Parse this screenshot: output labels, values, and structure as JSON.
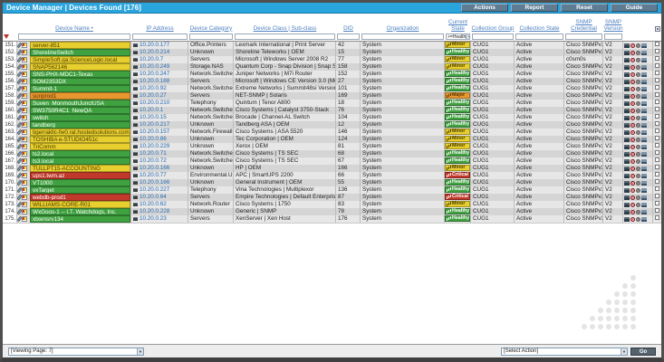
{
  "title": "Device Manager | Devices Found [176]",
  "toolbar": {
    "buttons": [
      "Actions",
      "Report",
      "Reset",
      "Guide"
    ]
  },
  "columns": [
    "Device Name •",
    "IP Address",
    "Device Category",
    "Device Class | Sub-class",
    "DID",
    "Organization",
    "Current State",
    "Collection Group",
    "Collection State",
    "SNMP Credential",
    "SNMP Version"
  ],
  "filters": {
    "state_filter": ">=Health"
  },
  "state_colors": {
    "healthy": {
      "bg": "#3fa13f",
      "fg": "#ffffff",
      "label": "Healthy"
    },
    "minor": {
      "bg": "#e7cf2f",
      "fg": "#4a3c00",
      "label": "Minor"
    },
    "major": {
      "bg": "#e6972f",
      "fg": "#5b3400",
      "label": "Major"
    },
    "critical": {
      "bg": "#c0392b",
      "fg": "#ffffff",
      "label": "Critical"
    }
  },
  "rows": [
    {
      "num": "151.",
      "name": "server-851",
      "state": "minor",
      "ip": "10.20.0.177",
      "category": "Office.Printers",
      "device_class": "Lexmark International | Print Server",
      "did": "42",
      "org": "System",
      "state_label": "Minor",
      "group": "CUG1",
      "coll_state": "Active",
      "credential": "Cisco SNMPv2 - Exa",
      "version": "V2"
    },
    {
      "num": "152.",
      "name": "ShorelineSwitch",
      "state": "healthy",
      "ip": "10.20.0.214",
      "category": "Unknown",
      "device_class": "Shoreline Teleworks | OEM",
      "did": "15",
      "org": "System",
      "state_label": "Healthy",
      "group": "CUG1",
      "coll_state": "Active",
      "credential": "Cisco SNMPv2 - Exa",
      "version": "V2"
    },
    {
      "num": "153.",
      "name": "SimpleSoft.qa.ScienceLogic.local",
      "state": "minor",
      "ip": "10.20.0.7",
      "category": "Servers",
      "device_class": "Microsoft | Windows Server 2008 R2",
      "did": "77",
      "org": "System",
      "state_label": "Minor",
      "group": "CUG1",
      "coll_state": "Active",
      "credential": "c0sm0s",
      "version": "V2"
    },
    {
      "num": "154.",
      "name": "SNAP562146",
      "state": "minor",
      "ip": "10.20.0.249",
      "category": "Storage.NAS",
      "device_class": "Quantum Corp - Snap Division | Snap Server",
      "did": "158",
      "org": "System",
      "state_label": "Minor",
      "group": "CUG1",
      "coll_state": "Active",
      "credential": "Cisco SNMPv2 - Exa",
      "version": "V2"
    },
    {
      "num": "155.",
      "name": "SNS-PHX-MDC1-Texas",
      "state": "healthy",
      "ip": "10.20.0.247",
      "category": "Network.Switches",
      "device_class": "Juniper Networks | M7i Router",
      "did": "152",
      "org": "System",
      "state_label": "Healthy",
      "group": "CUG1",
      "coll_state": "Active",
      "credential": "Cisco SNMPv2 - Exa",
      "version": "V2"
    },
    {
      "num": "156.",
      "name": "SOM2353DX",
      "state": "healthy",
      "ip": "10.20.0.188",
      "category": "Servers",
      "device_class": "Microsoft | Windows CE Version 3.0 (Multiple",
      "did": "27",
      "org": "System",
      "state_label": "Healthy",
      "group": "CUG1",
      "coll_state": "Active",
      "credential": "Cisco SNMPv2 - Exa",
      "version": "V2"
    },
    {
      "num": "157.",
      "name": "Summit-1",
      "state": "healthy",
      "ip": "10.20.0.92",
      "category": "Network.Switches",
      "device_class": "Extreme Networks | Summit48si Version 7.1.1",
      "did": "101",
      "org": "System",
      "state_label": "Healthy",
      "group": "CUG1",
      "coll_state": "Active",
      "credential": "Cisco SNMPv2 - Exa",
      "version": "V2"
    },
    {
      "num": "158.",
      "name": "sunprod1",
      "state": "major",
      "ip": "10.20.0.27",
      "category": "Servers",
      "device_class": "NET-SNMP | Solaris",
      "did": "169",
      "org": "System",
      "state_label": "Major",
      "group": "CUG1",
      "coll_state": "Active",
      "credential": "Cisco SNMPv2 - Exa",
      "version": "V2"
    },
    {
      "num": "159.",
      "name": "Suven_MonmouthJunctUSA",
      "state": "healthy",
      "ip": "10.20.0.210",
      "category": "Telephony",
      "device_class": "Quintum | Tenor A800",
      "did": "18",
      "org": "System",
      "state_label": "Healthy",
      "group": "CUG1",
      "coll_state": "Active",
      "credential": "Cisco SNMPv2 - Exa",
      "version": "V2"
    },
    {
      "num": "160.",
      "name": "SW3750R4C1_NewQA",
      "state": "healthy",
      "ip": "10.20.0.1",
      "category": "Network.Switches",
      "device_class": "Cisco Systems | Catalyst 3750-Stack",
      "did": "76",
      "org": "System",
      "state_label": "Healthy",
      "group": "CUG1",
      "coll_state": "Active",
      "credential": "Cisco SNMPv2 - Exa",
      "version": "V2"
    },
    {
      "num": "161.",
      "name": "switch",
      "state": "healthy",
      "ip": "10.20.0.15",
      "category": "Network.Switches",
      "device_class": "Brocade | Channel-AL Switch",
      "did": "104",
      "org": "System",
      "state_label": "Healthy",
      "group": "CUG1",
      "coll_state": "Active",
      "credential": "Cisco SNMPv2 - Exa",
      "version": "V2"
    },
    {
      "num": "162.",
      "name": "tandberg",
      "state": "healthy",
      "ip": "10.20.0.217",
      "category": "Unknown",
      "device_class": "Tandberg ASA | OEM",
      "did": "12",
      "org": "System",
      "state_label": "Healthy",
      "group": "CUG1",
      "coll_state": "Active",
      "credential": "Cisco SNMPv2 - Exa",
      "version": "V2"
    },
    {
      "num": "163.",
      "name": "tigerrakllc-fw0.ral.hostedsolutions.com",
      "state": "minor",
      "ip": "10.20.0.157",
      "category": "Network.Firewall",
      "device_class": "Cisco Systems | ASA 5520",
      "did": "146",
      "org": "System",
      "state_label": "Minor",
      "group": "CUG1",
      "coll_state": "Active",
      "credential": "Cisco SNMPv2 - Exa",
      "version": "V2"
    },
    {
      "num": "164.",
      "name": "TOSHIBA e-STUDIO451c",
      "state": "minor",
      "ip": "10.20.0.86",
      "category": "Unknown",
      "device_class": "Tec Corporation | OEM",
      "did": "124",
      "org": "System",
      "state_label": "Minor",
      "group": "CUG1",
      "coll_state": "Active",
      "credential": "Cisco SNMPv2 - Exa",
      "version": "V2"
    },
    {
      "num": "165.",
      "name": "TriComm",
      "state": "minor",
      "ip": "10.20.0.229",
      "category": "Unknown",
      "device_class": "Xerox | OEM",
      "did": "81",
      "org": "System",
      "state_label": "Minor",
      "group": "CUG1",
      "coll_state": "Active",
      "credential": "Cisco SNMPv2 - Exa",
      "version": "V2"
    },
    {
      "num": "166.",
      "name": "ts2.local",
      "state": "healthy",
      "ip": "10.20.0.71",
      "category": "Network.Switches",
      "device_class": "Cisco Systems | TS SEC",
      "did": "68",
      "org": "System",
      "state_label": "Healthy",
      "group": "CUG1",
      "coll_state": "Active",
      "credential": "Cisco SNMPv2 - Exa",
      "version": "V2"
    },
    {
      "num": "167.",
      "name": "ts3.local",
      "state": "healthy",
      "ip": "10.20.0.72",
      "category": "Network.Switches",
      "device_class": "Cisco Systems | TS SEC",
      "did": "67",
      "org": "System",
      "state_label": "Healthy",
      "group": "CUG1",
      "coll_state": "Active",
      "credential": "Cisco SNMPv2 - Exa",
      "version": "V2"
    },
    {
      "num": "168.",
      "name": "TULLPT15-ACCOUNTING",
      "state": "minor",
      "ip": "10.20.0.166",
      "category": "Unknown",
      "device_class": "HP | OEM",
      "did": "166",
      "org": "System",
      "state_label": "Minor",
      "group": "CUG1",
      "coll_state": "Active",
      "credential": "Cisco SNMPv2 - Exa",
      "version": "V2"
    },
    {
      "num": "169.",
      "name": "ups1.twm.az",
      "state": "critical",
      "ip": "10.20.0.77",
      "category": "Environmental.UPS",
      "device_class": "APC | SmartUPS 2200",
      "did": "66",
      "org": "System",
      "state_label": "Critical",
      "group": "CUG1",
      "coll_state": "Active",
      "credential": "Cisco SNMPv2 - Exa",
      "version": "V2"
    },
    {
      "num": "170.",
      "name": "VT1000",
      "state": "healthy",
      "ip": "10.20.0.166",
      "category": "Unknown",
      "device_class": "General Instrument | OEM",
      "did": "55",
      "org": "System",
      "state_label": "Healthy",
      "group": "CUG1",
      "coll_state": "Active",
      "credential": "Cisco SNMPv2 - Exa",
      "version": "V2"
    },
    {
      "num": "171.",
      "name": "vxTarget",
      "state": "healthy",
      "ip": "10.20.0.227",
      "category": "Telephony",
      "device_class": "Vina Technologies | Multiplexor",
      "did": "136",
      "org": "System",
      "state_label": "Healthy",
      "group": "CUG1",
      "coll_state": "Active",
      "credential": "Cisco SNMPv2 - Exa",
      "version": "V2"
    },
    {
      "num": "172.",
      "name": "webdb-prod1",
      "state": "critical",
      "ip": "10.20.0.64",
      "category": "Servers",
      "device_class": "Empire Technologies | Default Enterprise Agent",
      "did": "87",
      "org": "System",
      "state_label": "Critical",
      "group": "CUG1",
      "coll_state": "Active",
      "credential": "Cisco SNMPv2 - Exa",
      "version": "V2"
    },
    {
      "num": "173.",
      "name": "WILLIAMS-CORE-R01",
      "state": "minor",
      "ip": "10.20.0.62",
      "category": "Network.Router",
      "device_class": "Cisco Systems | 1750",
      "did": "83",
      "org": "System",
      "state_label": "Minor",
      "group": "CUG1",
      "coll_state": "Active",
      "credential": "Cisco SNMPv2 - Exa",
      "version": "V2"
    },
    {
      "num": "174.",
      "name": "WxGoos-1 -- I.T. Watchdogs, Inc.",
      "state": "healthy",
      "ip": "10.20.0.228",
      "category": "Unknown",
      "device_class": "Generic | SNMP",
      "did": "78",
      "org": "System",
      "state_label": "Healthy",
      "group": "CUG1",
      "coll_state": "Active",
      "credential": "Cisco SNMPv2 - Exa",
      "version": "V2"
    },
    {
      "num": "175.",
      "name": "xtxensrv134",
      "state": "healthy",
      "ip": "10.20.0.23",
      "category": "Servers",
      "device_class": "XenServer | Xen Host",
      "did": "176",
      "org": "System",
      "state_label": "Healthy",
      "group": "CUG1",
      "coll_state": "Active",
      "credential": "Cisco SNMPv2 - Exa",
      "version": "V2"
    }
  ],
  "footer": {
    "page_select": "[Viewing Page: 7]",
    "action_select": "[Select Action]",
    "go_label": "Go"
  },
  "theme": {
    "titlebar_blue": "#2aa4dd",
    "header_link_blue": "#4c7fc0",
    "ip_link_blue": "#2a6db5"
  }
}
